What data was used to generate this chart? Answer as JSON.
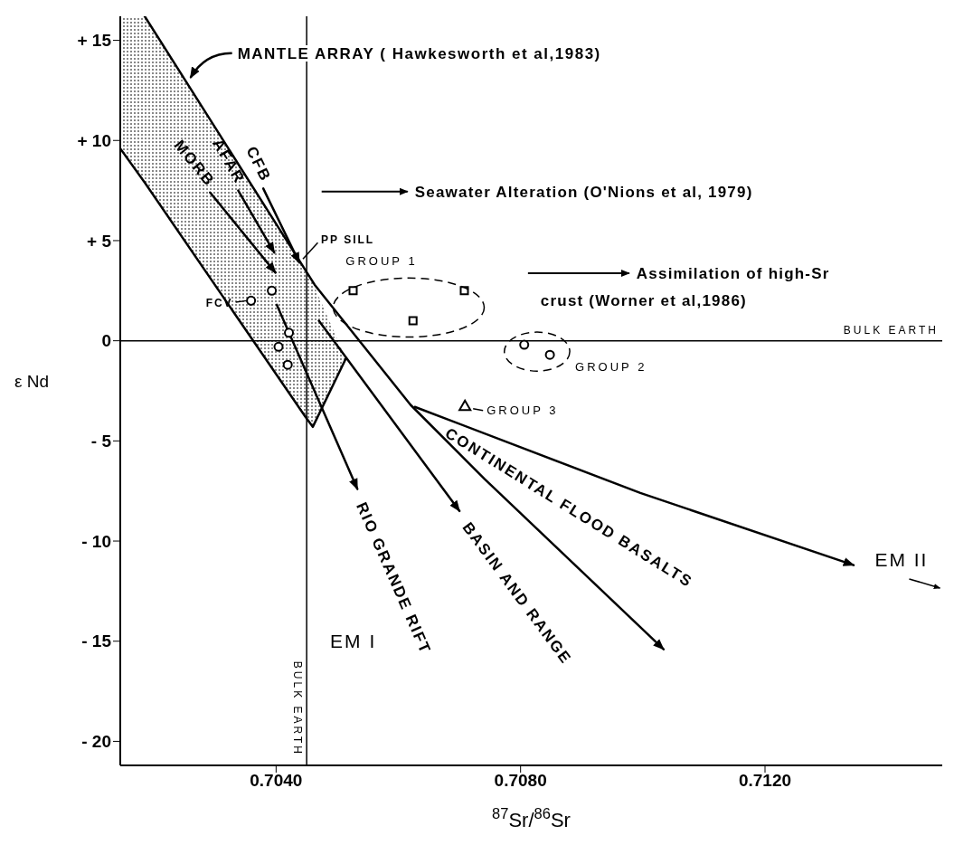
{
  "chart_data": {
    "type": "scatter",
    "xlabel": "$^{87}$Sr/$^{86}$Sr",
    "ylabel": "ε Nd",
    "xlim": [
      0.70145,
      0.7149
    ],
    "ylim": [
      -21.2,
      16.2
    ],
    "xticks": [
      {
        "value": 0.704,
        "label": "0.7040"
      },
      {
        "value": 0.708,
        "label": "0.7080"
      },
      {
        "value": 0.712,
        "label": "0.7120"
      }
    ],
    "yticks": [
      {
        "value": 15,
        "label": "+ 15"
      },
      {
        "value": 10,
        "label": "+ 10"
      },
      {
        "value": 5,
        "label": "+ 5"
      },
      0,
      {
        "value": -5,
        "label": "- 5"
      },
      {
        "value": -10,
        "label": "- 10"
      },
      {
        "value": -15,
        "label": "- 15"
      },
      {
        "value": -20,
        "label": "- 20"
      }
    ],
    "series": [
      {
        "type": "line",
        "color": "#000000",
        "x": [
          0.70145,
          0.70185,
          0.70448,
          0.7046,
          0.70514
        ],
        "values": [
          9.6,
          7.9,
          -3.8,
          -4.3,
          -0.9
        ],
        "lower": [
          9.6,
          7.9,
          -3.8,
          -4.3,
          -0.9
        ],
        "upper": [
          16.2,
          16.2,
          3.5,
          2.9,
          -0.9
        ]
      },
      {
        "type": "line",
        "color": "#000000",
        "x": [
          0.70185,
          0.70463,
          0.7062,
          0.70741,
          0.71034
        ],
        "values": [
          16.2,
          2.8,
          -3.2,
          -6.9,
          -15.4
        ]
      },
      {
        "type": "line",
        "name": "RIO GRANDE RIFT",
        "color": "#000000",
        "x": [
          0.70401,
          0.70533
        ],
        "values": [
          1.8,
          -7.4
        ]
      },
      {
        "type": "line",
        "name": "BASIN AND RANGE",
        "color": "#000000",
        "x": [
          0.7047,
          0.707
        ],
        "values": [
          1.0,
          -8.5
        ]
      },
      {
        "type": "line",
        "name": "CONTINENTAL FLOOD BASALTS",
        "color": "#000000",
        "x": [
          0.70627,
          0.70996,
          0.71345
        ],
        "values": [
          -3.3,
          -7.6,
          -11.2
        ]
      },
      {
        "type": "line",
        "name": "CFB",
        "color": "#000000",
        "x": [
          0.70379,
          0.70438
        ],
        "values": [
          7.6,
          3.9
        ]
      },
      {
        "type": "line",
        "name": "AFAR",
        "color": "#000000",
        "x": [
          0.70338,
          0.70397
        ],
        "values": [
          7.5,
          4.4
        ]
      },
      {
        "type": "line",
        "name": "MORB",
        "color": "#000000",
        "x": [
          0.70292,
          0.70399
        ],
        "values": [
          7.4,
          3.4
        ]
      },
      {
        "name": "GROUP 1",
        "color": "#000000",
        "marker": "square",
        "x": [
          0.70526,
          0.70624,
          0.70708
        ],
        "values": [
          2.5,
          1.0,
          2.5
        ]
      },
      {
        "name": "GROUP 2",
        "color": "#000000",
        "marker": "circle",
        "x": [
          0.70806,
          0.70848
        ],
        "values": [
          -0.2,
          -0.7
        ]
      },
      {
        "name": "GROUP 3",
        "color": "#000000",
        "marker": "triangle",
        "x": [
          0.70709
        ],
        "values": [
          -3.3
        ]
      },
      {
        "color": "#000000",
        "marker": "circle",
        "x": [
          0.70359,
          0.70393,
          0.70421,
          0.70404,
          0.70419
        ],
        "values": [
          2.0,
          2.5,
          0.4,
          -0.3,
          -1.2
        ]
      }
    ],
    "ref_lines": [
      {
        "axis": "x",
        "value": 0.7045,
        "label": "BULK EARTH"
      },
      {
        "axis": "y",
        "value": 0,
        "label": "BULK EARTH"
      }
    ],
    "annotations": [
      {
        "text": "MANTLE ARRAY ( Hawkesworth et al,1983)",
        "x": 0.70251,
        "y": 13.0
      },
      "Seawater Alteration (O'Nions et al, 1979)",
      "Assimilation of high-Sr\ncrust (Worner et al,1986)",
      {
        "text": "PP SILL",
        "x": 0.70438,
        "y": 3.9
      },
      {
        "text": "FCV",
        "x": 0.70359,
        "y": 2.0
      },
      "EM I",
      "EM II"
    ]
  }
}
